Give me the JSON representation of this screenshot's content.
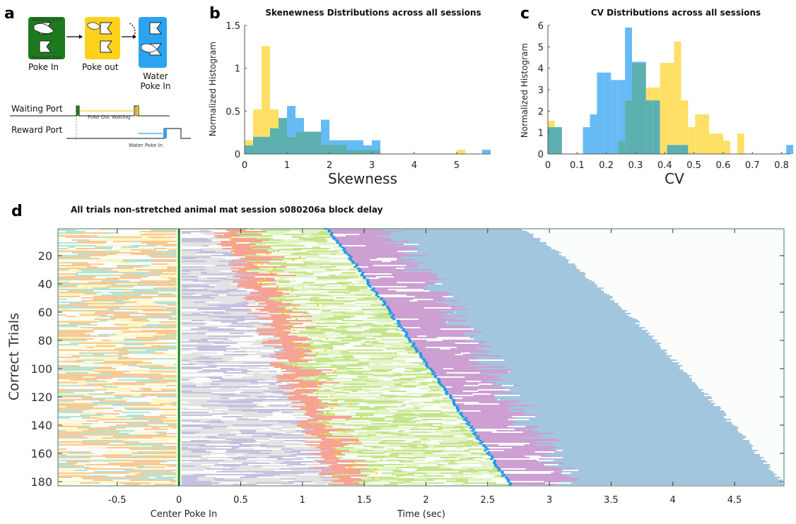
{
  "panel_a": {
    "letter": "a",
    "box1_label": "Poke In",
    "box1_top_text": "Waiting port",
    "box1_bottom_text": "Reward Port",
    "box2_label": "Poke out",
    "box3_label_1": "Water",
    "box3_label_2": "Poke In",
    "row1_label": "Waiting Port",
    "row2_label": "Reward Port",
    "annot_pokeout": "Poke Out",
    "annot_waiting": "Waiting",
    "annot_waterpoke": "Water Poke In",
    "colors": {
      "box1": "#1e7a1e",
      "box2": "#ffd21a",
      "box3": "#2aa3f0"
    }
  },
  "chart_data": [
    {
      "panel": "b",
      "type": "histogram",
      "title": "Skenewness Distributions across all sessions",
      "xlabel": "Skewness",
      "ylabel": "Normalized Histogram",
      "xlim": [
        0,
        5.8
      ],
      "ylim": [
        0,
        1.5
      ],
      "xticks": [
        0,
        1,
        2,
        3,
        4,
        5
      ],
      "yticks": [
        0,
        0.5,
        1,
        1.5
      ],
      "yticklabels": [
        "0",
        "0.5",
        "1",
        "1.5"
      ],
      "overlap_color": "#5cb0b0",
      "series": [
        {
          "color": "#ffe066",
          "bin_width": 0.2,
          "bins": [
            {
              "x": 0.0,
              "y": 0.16
            },
            {
              "x": 0.2,
              "y": 0.52
            },
            {
              "x": 0.4,
              "y": 1.26
            },
            {
              "x": 0.6,
              "y": 0.52
            },
            {
              "x": 0.8,
              "y": 0.42
            },
            {
              "x": 1.0,
              "y": 0.2
            },
            {
              "x": 1.2,
              "y": 0.26
            },
            {
              "x": 1.4,
              "y": 0.26
            },
            {
              "x": 1.6,
              "y": 0.26
            },
            {
              "x": 1.8,
              "y": 0.11
            },
            {
              "x": 2.0,
              "y": 0.11
            },
            {
              "x": 2.2,
              "y": 0.11
            },
            {
              "x": 2.4,
              "y": 0.05
            },
            {
              "x": 2.6,
              "y": 0.05
            },
            {
              "x": 2.8,
              "y": 0.05
            },
            {
              "x": 3.0,
              "y": 0.05
            },
            {
              "x": 5.0,
              "y": 0.05
            }
          ]
        },
        {
          "color": "#66bbf5",
          "bin_width": 0.2,
          "bins": [
            {
              "x": 0.0,
              "y": 0.1
            },
            {
              "x": 0.2,
              "y": 0.2
            },
            {
              "x": 0.4,
              "y": 0.2
            },
            {
              "x": 0.6,
              "y": 0.3
            },
            {
              "x": 0.8,
              "y": 0.42
            },
            {
              "x": 1.0,
              "y": 0.56
            },
            {
              "x": 1.2,
              "y": 0.42
            },
            {
              "x": 1.4,
              "y": 0.26
            },
            {
              "x": 1.6,
              "y": 0.26
            },
            {
              "x": 1.8,
              "y": 0.4
            },
            {
              "x": 2.0,
              "y": 0.16
            },
            {
              "x": 2.2,
              "y": 0.16
            },
            {
              "x": 2.4,
              "y": 0.16
            },
            {
              "x": 2.6,
              "y": 0.16
            },
            {
              "x": 2.8,
              "y": 0.1
            },
            {
              "x": 3.0,
              "y": 0.16
            },
            {
              "x": 5.6,
              "y": 0.05
            }
          ]
        }
      ]
    },
    {
      "panel": "c",
      "type": "histogram",
      "title": "CV Distributions across all sessions",
      "xlabel": "CV",
      "ylabel": "Normalized Histogram",
      "xlim": [
        0,
        0.83
      ],
      "ylim": [
        0,
        6
      ],
      "xticks": [
        0,
        0.1,
        0.2,
        0.3,
        0.4,
        0.5,
        0.6,
        0.7,
        0.8
      ],
      "yticks": [
        0,
        1,
        2,
        3,
        4,
        5,
        6
      ],
      "overlap_color": "#5cb0b0",
      "series": [
        {
          "color": "#ffe066",
          "bin_width": 0.024,
          "bins": [
            {
              "x": 0.0,
              "y": 1.55
            },
            {
              "x": 0.024,
              "y": 1.25
            },
            {
              "x": 0.24,
              "y": 0.62
            },
            {
              "x": 0.264,
              "y": 2.5
            },
            {
              "x": 0.288,
              "y": 4.25
            },
            {
              "x": 0.312,
              "y": 4.25
            },
            {
              "x": 0.336,
              "y": 3.1
            },
            {
              "x": 0.36,
              "y": 3.1
            },
            {
              "x": 0.384,
              "y": 4.25
            },
            {
              "x": 0.408,
              "y": 4.25
            },
            {
              "x": 0.432,
              "y": 5.25
            },
            {
              "x": 0.456,
              "y": 2.5
            },
            {
              "x": 0.48,
              "y": 1.25
            },
            {
              "x": 0.504,
              "y": 1.85
            },
            {
              "x": 0.528,
              "y": 1.85
            },
            {
              "x": 0.552,
              "y": 0.95
            },
            {
              "x": 0.576,
              "y": 0.95
            },
            {
              "x": 0.6,
              "y": 0.62
            },
            {
              "x": 0.648,
              "y": 0.95
            }
          ]
        },
        {
          "color": "#66bbf5",
          "bin_width": 0.024,
          "bins": [
            {
              "x": 0.0,
              "y": 1.25
            },
            {
              "x": 0.024,
              "y": 1.25
            },
            {
              "x": 0.12,
              "y": 1.25
            },
            {
              "x": 0.144,
              "y": 1.85
            },
            {
              "x": 0.168,
              "y": 3.8
            },
            {
              "x": 0.192,
              "y": 3.8
            },
            {
              "x": 0.216,
              "y": 3.45
            },
            {
              "x": 0.24,
              "y": 3.45
            },
            {
              "x": 0.264,
              "y": 5.9
            },
            {
              "x": 0.288,
              "y": 4.3
            },
            {
              "x": 0.312,
              "y": 4.3
            },
            {
              "x": 0.336,
              "y": 2.5
            },
            {
              "x": 0.36,
              "y": 2.5
            },
            {
              "x": 0.408,
              "y": 0.42
            },
            {
              "x": 0.432,
              "y": 0.42
            },
            {
              "x": 0.456,
              "y": 0.42
            },
            {
              "x": 0.816,
              "y": 0.42
            }
          ]
        }
      ]
    },
    {
      "panel": "d",
      "type": "raster",
      "title": "All trials non-stretched animal mat session s080206a block delay",
      "xlabel": "Time (sec)",
      "xlabel_zero": "Center Poke In",
      "ylabel": "Correct Trials",
      "xlim": [
        -0.98,
        4.9
      ],
      "ylim": [
        1,
        183
      ],
      "xticks": [
        -0.5,
        0,
        0.5,
        1,
        1.5,
        2,
        2.5,
        3,
        3.5,
        4,
        4.5
      ],
      "xticklabels": [
        "-0.5",
        "0",
        "0.5",
        "1",
        "1.5",
        "2",
        "2.5",
        "3",
        "3.5",
        "4",
        "4.5"
      ],
      "yticks": [
        20,
        40,
        60,
        80,
        100,
        120,
        140,
        160,
        180
      ],
      "n_trials": 182,
      "center_line_x": 0,
      "colors": {
        "pre_phase": [
          "#ffb266",
          "#9ad9c4",
          "#fff3a8",
          "#f2b878"
        ],
        "gray_phase": "#d9d9d9",
        "purple_bars": "#b4a8d6",
        "red_phase": "#f4806e",
        "green_phase": [
          "#aedc5e",
          "#d9efb0"
        ],
        "magenta_phase": "#bb7bc2",
        "blue_phase": "#80b1d3",
        "marker_center": "#138a13",
        "marker_poke": "#ffcc22",
        "marker_water": "#1a9af0",
        "background": "#fbfdfb",
        "frame": "#4a7a66"
      },
      "curves": {
        "water_poke_time_range": [
          1.2,
          2.68
        ],
        "blue_end_time_range": [
          2.75,
          4.9
        ]
      }
    }
  ]
}
